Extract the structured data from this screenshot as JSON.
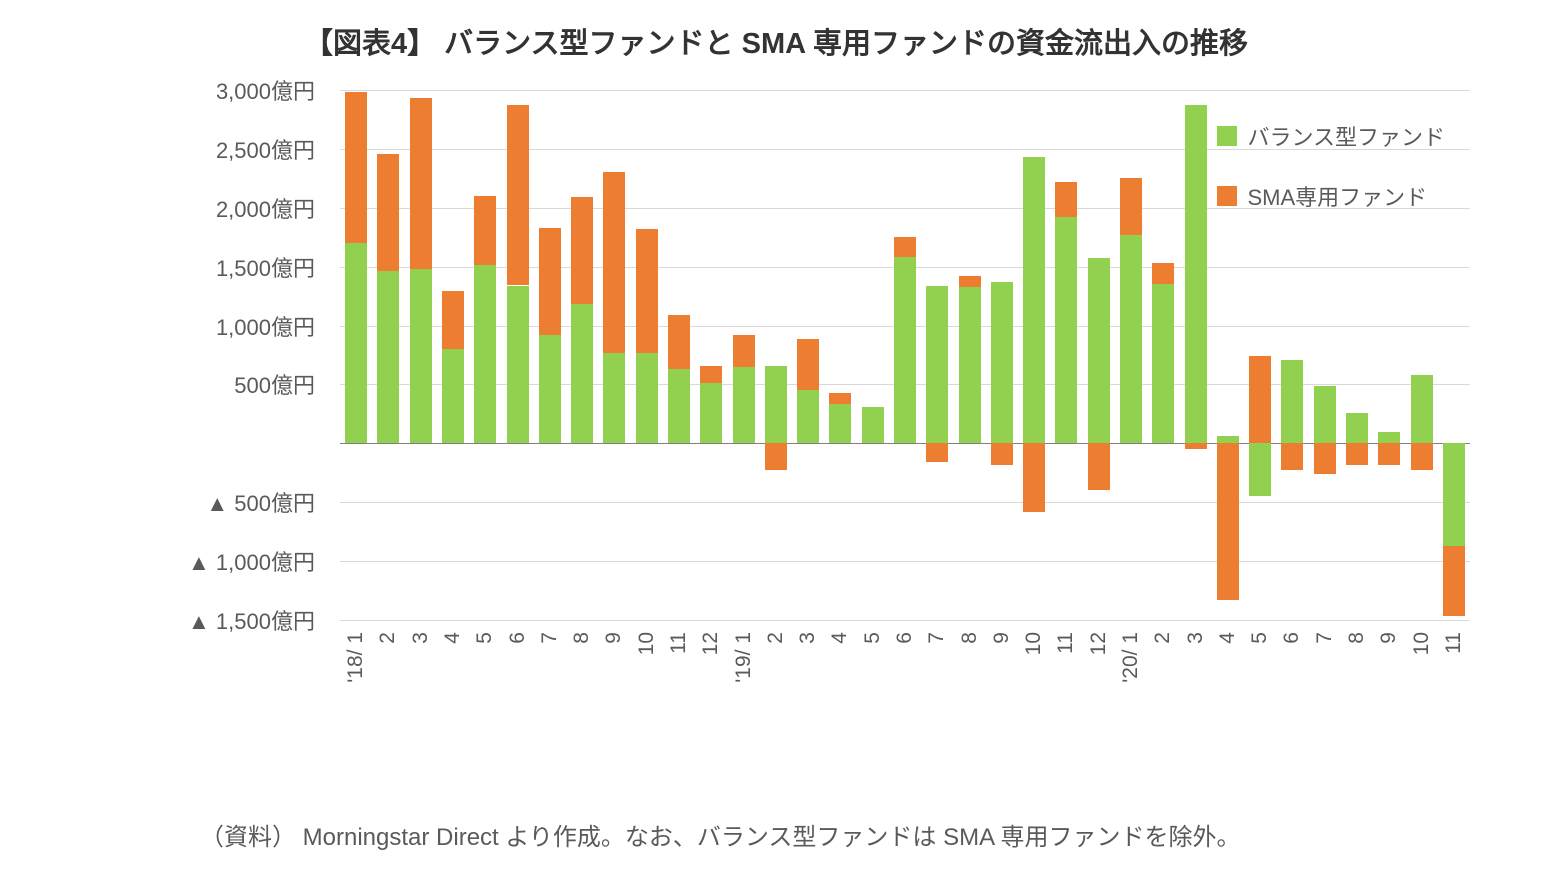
{
  "title": "【図表4】 バランス型ファンドと SMA 専用ファンドの資金流出入の推移",
  "title_fontsize": 29,
  "title_color": "#333333",
  "source_note": "（資料） Morningstar Direct より作成。なお、バランス型ファンドは SMA 専用ファンドを除外。",
  "source_fontsize": 24,
  "legend": {
    "items": [
      {
        "label": "バランス型ファンド",
        "color": "#92d050"
      },
      {
        "label": "SMA専用ファンド",
        "color": "#ed7d31"
      }
    ],
    "fontsize": 22
  },
  "chart": {
    "type": "stacked-divergent-bar",
    "background_color": "#ffffff",
    "gridline_color": "#d9d9d9",
    "axis_color": "#808080",
    "ylim": [
      -1500,
      3000
    ],
    "ytick_step": 500,
    "y_labels_above": [
      "3,000億円",
      "2,500億円",
      "2,000億円",
      "1,500億円",
      "1,000億円",
      "500億円"
    ],
    "y_labels_below": [
      "▲ 500億円",
      "▲ 1,000億円",
      "▲ 1,500億円"
    ],
    "y_label_fontsize": 22,
    "x_label_fontsize": 21,
    "bar_gap_ratio": 0.32,
    "categories": [
      "'18/ 1",
      "2",
      "3",
      "4",
      "5",
      "6",
      "7",
      "8",
      "9",
      "10",
      "11",
      "12",
      "'19/ 1",
      "2",
      "3",
      "4",
      "5",
      "6",
      "7",
      "8",
      "9",
      "10",
      "11",
      "12",
      "'20/ 1",
      "2",
      "3",
      "4",
      "5",
      "6",
      "7",
      "8",
      "9",
      "10",
      "11"
    ],
    "series": [
      {
        "name": "balance",
        "label": "バランス型ファンド",
        "color": "#92d050"
      },
      {
        "name": "sma",
        "label": "SMA専用ファンド",
        "color": "#ed7d31"
      }
    ],
    "data": [
      {
        "balance": 1700,
        "sma": 1280
      },
      {
        "balance": 1460,
        "sma": 1000
      },
      {
        "balance": 1480,
        "sma": 1450
      },
      {
        "balance": 800,
        "sma": 490
      },
      {
        "balance": 1510,
        "sma": 590
      },
      {
        "balance": 1340,
        "sma": 1530
      },
      {
        "balance": 920,
        "sma": 910
      },
      {
        "balance": 1180,
        "sma": 910
      },
      {
        "balance": 770,
        "sma": 1530
      },
      {
        "balance": 770,
        "sma": 1050
      },
      {
        "balance": 630,
        "sma": 460
      },
      {
        "balance": 510,
        "sma": 150
      },
      {
        "balance": 650,
        "sma": 270
      },
      {
        "balance": 660,
        "sma": -230
      },
      {
        "balance": 450,
        "sma": 440
      },
      {
        "balance": 330,
        "sma": 100
      },
      {
        "balance": 310,
        "sma": 0
      },
      {
        "balance": 1580,
        "sma": 170
      },
      {
        "balance": 1340,
        "sma": -160
      },
      {
        "balance": 1330,
        "sma": 90
      },
      {
        "balance": 1370,
        "sma": -180
      },
      {
        "balance": 2430,
        "sma": -580
      },
      {
        "balance": 1920,
        "sma": 300
      },
      {
        "balance": 1570,
        "sma": -400
      },
      {
        "balance": 1770,
        "sma": 480
      },
      {
        "balance": 1350,
        "sma": 180
      },
      {
        "balance": 2870,
        "sma": -50
      },
      {
        "balance": 60,
        "sma": -1330
      },
      {
        "balance": -450,
        "sma": 740
      },
      {
        "balance": 710,
        "sma": -230
      },
      {
        "balance": 490,
        "sma": -260
      },
      {
        "balance": 260,
        "sma": -180
      },
      {
        "balance": 100,
        "sma": -180
      },
      {
        "balance": 580,
        "sma": -230
      },
      {
        "balance": -870,
        "sma": -600
      }
    ]
  }
}
